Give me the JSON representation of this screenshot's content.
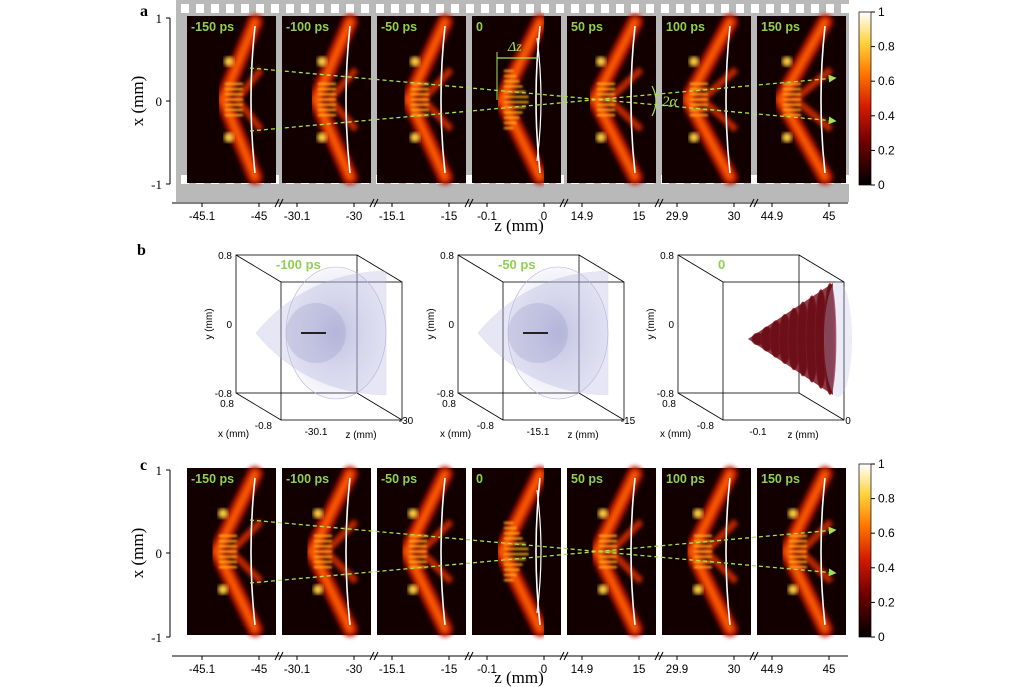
{
  "figure": {
    "panel_a": {
      "label": "a",
      "frame_labels": [
        "-150 ps",
        "-100 ps",
        "-50 ps",
        "0",
        "50 ps",
        "100 ps",
        "150 ps"
      ],
      "y_ticks": [
        "1",
        "0",
        "-1"
      ],
      "y_label": "x (mm)",
      "x_ticks": [
        [
          "-45.1",
          "-45"
        ],
        [
          "-30.1",
          "-30"
        ],
        [
          "-15.1",
          "-15"
        ],
        [
          "-0.1",
          "0"
        ],
        [
          "14.9",
          "15"
        ],
        [
          "29.9",
          "30"
        ],
        [
          "44.9",
          "45"
        ]
      ],
      "x_label": "z (mm)",
      "annotation_dz": "Δz",
      "annotation_alpha": "2α",
      "colorbar_ticks": [
        "1",
        "0.8",
        "0.6",
        "0.4",
        "0.2",
        "0"
      ]
    },
    "panel_b": {
      "label": "b",
      "volumes": [
        {
          "time_label": "-100 ps",
          "z_ticks": [
            "-30.1",
            "-30"
          ]
        },
        {
          "time_label": "-50 ps",
          "z_ticks": [
            "-15.1",
            "-15"
          ]
        },
        {
          "time_label": "0",
          "z_ticks": [
            "-0.1",
            "0"
          ]
        }
      ],
      "y_ticks": [
        "0.8",
        "0",
        "-0.8"
      ],
      "x_ticks": [
        "0.8",
        "-0.8"
      ],
      "y_label": "y (mm)",
      "x_label": "x (mm)",
      "z_label": "z (mm)"
    },
    "panel_c": {
      "label": "c",
      "frame_labels": [
        "-150 ps",
        "-100 ps",
        "-50 ps",
        "0",
        "50 ps",
        "100 ps",
        "150 ps"
      ],
      "y_ticks": [
        "1",
        "0",
        "-1"
      ],
      "y_label": "x (mm)",
      "x_ticks": [
        [
          "-45.1",
          "-45"
        ],
        [
          "-30.1",
          "-30"
        ],
        [
          "-15.1",
          "-15"
        ],
        [
          "-0.1",
          "0"
        ],
        [
          "14.9",
          "15"
        ],
        [
          "29.9",
          "30"
        ],
        [
          "44.9",
          "45"
        ]
      ],
      "x_label": "z (mm)",
      "colorbar_ticks": [
        "1",
        "0.8",
        "0.6",
        "0.4",
        "0.2",
        "0"
      ]
    },
    "colors": {
      "film": "#b9b9b9",
      "frame_bg": "#120000",
      "label_green": "#8fd14f",
      "dash_green": "#a4e34f"
    }
  }
}
